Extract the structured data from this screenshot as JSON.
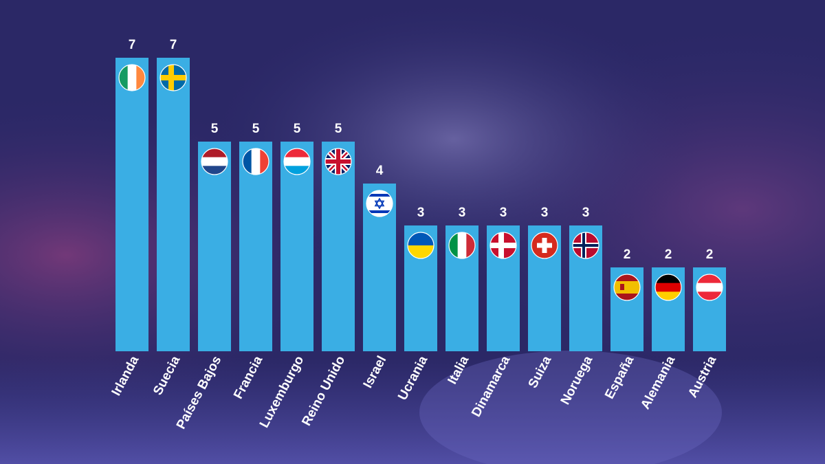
{
  "chart_data": {
    "type": "bar",
    "categories": [
      "Irlanda",
      "Suecia",
      "Países Bajos",
      "Francia",
      "Luxemburgo",
      "Reino Unido",
      "Israel",
      "Ucrania",
      "Italia",
      "Dinamarca",
      "Suiza",
      "Noruega",
      "España",
      "Alemania",
      "Austria"
    ],
    "values": [
      7,
      7,
      5,
      5,
      5,
      5,
      4,
      3,
      3,
      3,
      3,
      3,
      2,
      2,
      2
    ],
    "flags": [
      "ireland-flag-icon",
      "sweden-flag-icon",
      "netherlands-flag-icon",
      "france-flag-icon",
      "luxembourg-flag-icon",
      "uk-flag-icon",
      "israel-flag-icon",
      "ukraine-flag-icon",
      "italy-flag-icon",
      "denmark-flag-icon",
      "switzerland-flag-icon",
      "norway-flag-icon",
      "spain-flag-icon",
      "germany-flag-icon",
      "austria-flag-icon"
    ],
    "title": "",
    "xlabel": "",
    "ylabel": "",
    "ylim": [
      0,
      7
    ],
    "grid": false,
    "bar_color": "#3aaee4",
    "background_color": "#2e2a6e"
  }
}
